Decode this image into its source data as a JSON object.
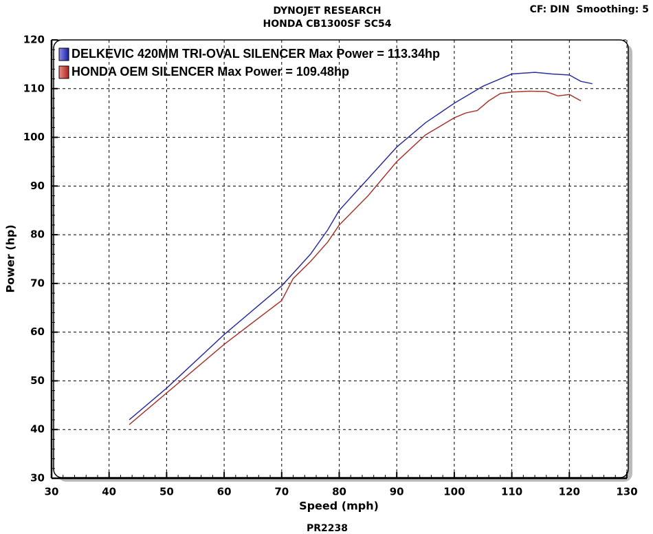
{
  "chart_data": {
    "type": "line",
    "title": "DYNOJET RESEARCH",
    "subtitle": "HONDA CB1300SF SC54",
    "note": "CF: DIN  Smoothing: 5",
    "footer": "PR2238",
    "x_label": "Speed (mph)",
    "y_label": "Power (hp)",
    "xlim": [
      30,
      130
    ],
    "xticks": [
      30,
      40,
      50,
      60,
      70,
      80,
      90,
      100,
      110,
      120,
      130
    ],
    "ylim": [
      30,
      120
    ],
    "yticks": [
      30,
      40,
      50,
      60,
      70,
      80,
      90,
      100,
      110,
      120
    ],
    "x_minor_step": 2,
    "y_minor_step": 2,
    "grid": true,
    "legend": "top-left",
    "series": [
      {
        "name": "DELKEVIC 420MM TRI-OVAL SILENCER Max Power = 113.34hp",
        "color": "#2b2f9e",
        "x": [
          43.5,
          50,
          55,
          60,
          65,
          70,
          75,
          78,
          80,
          85,
          90,
          95,
          100,
          105,
          108,
          110,
          114,
          117,
          120,
          122,
          124
        ],
        "values": [
          42,
          48.5,
          54,
          59.5,
          64.5,
          69.5,
          76,
          81,
          85,
          91.5,
          98,
          103,
          107,
          110.5,
          112,
          113,
          113.34,
          113,
          112.8,
          111.5,
          111
        ]
      },
      {
        "name": "HONDA OEM SILENCER Max Power = 109.48hp",
        "color": "#a8362c",
        "x": [
          43.5,
          50,
          55,
          60,
          65,
          70,
          72,
          75,
          78,
          80,
          85,
          90,
          95,
          100,
          102,
          104,
          106,
          108,
          110,
          113,
          116,
          118,
          120,
          122
        ],
        "values": [
          41,
          47.5,
          52.5,
          57.5,
          62,
          66.5,
          71,
          74.5,
          78.5,
          82,
          88,
          95,
          100.5,
          104,
          105,
          105.5,
          107.5,
          109,
          109.3,
          109.48,
          109.4,
          108.5,
          108.8,
          107.5
        ]
      }
    ]
  }
}
